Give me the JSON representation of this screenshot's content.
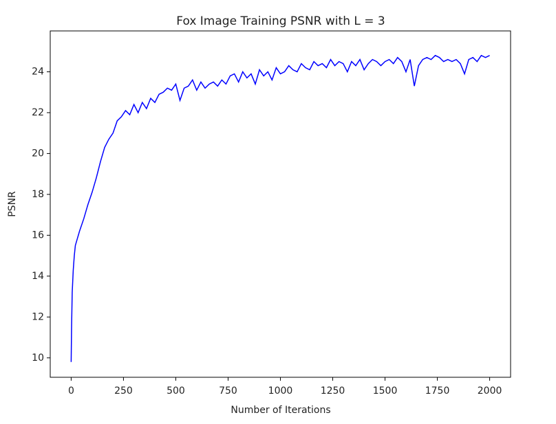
{
  "chart_data": {
    "type": "line",
    "title": "Fox Image Training PSNR with L = 3",
    "x_label": "Number of Iterations",
    "y_label": "PSNR",
    "x": [
      0,
      2,
      5,
      10,
      15,
      20,
      40,
      60,
      80,
      100,
      120,
      140,
      160,
      180,
      200,
      220,
      240,
      260,
      280,
      300,
      320,
      340,
      360,
      380,
      400,
      420,
      440,
      460,
      480,
      500,
      520,
      540,
      560,
      580,
      600,
      620,
      640,
      660,
      680,
      700,
      720,
      740,
      760,
      780,
      800,
      820,
      840,
      860,
      880,
      900,
      920,
      940,
      960,
      980,
      1000,
      1020,
      1040,
      1060,
      1080,
      1100,
      1120,
      1140,
      1160,
      1180,
      1200,
      1220,
      1240,
      1260,
      1280,
      1300,
      1320,
      1340,
      1360,
      1380,
      1400,
      1420,
      1440,
      1460,
      1480,
      1500,
      1520,
      1540,
      1560,
      1580,
      1600,
      1620,
      1640,
      1660,
      1680,
      1700,
      1720,
      1740,
      1760,
      1780,
      1800,
      1820,
      1840,
      1860,
      1880,
      1900,
      1920,
      1940,
      1960,
      1980,
      2000
    ],
    "series": [
      {
        "color": "#0000ff",
        "values": [
          9.8,
          11.5,
          13.2,
          14.3,
          15.0,
          15.5,
          16.2,
          16.8,
          17.5,
          18.1,
          18.8,
          19.6,
          20.3,
          20.7,
          21.0,
          21.6,
          21.8,
          22.1,
          21.9,
          22.4,
          22.0,
          22.5,
          22.2,
          22.7,
          22.5,
          22.9,
          23.0,
          23.2,
          23.1,
          23.4,
          22.6,
          23.2,
          23.3,
          23.6,
          23.1,
          23.5,
          23.2,
          23.4,
          23.5,
          23.3,
          23.6,
          23.4,
          23.8,
          23.9,
          23.5,
          24.0,
          23.7,
          23.9,
          23.4,
          24.1,
          23.8,
          24.0,
          23.6,
          24.2,
          23.9,
          24.0,
          24.3,
          24.1,
          24.0,
          24.4,
          24.2,
          24.1,
          24.5,
          24.3,
          24.4,
          24.2,
          24.6,
          24.3,
          24.5,
          24.4,
          24.0,
          24.5,
          24.3,
          24.6,
          24.1,
          24.4,
          24.6,
          24.5,
          24.3,
          24.5,
          24.6,
          24.4,
          24.7,
          24.5,
          24.0,
          24.6,
          23.3,
          24.3,
          24.6,
          24.7,
          24.6,
          24.8,
          24.7,
          24.5,
          24.6,
          24.5,
          24.6,
          24.4,
          23.9,
          24.6,
          24.7,
          24.5,
          24.8,
          24.7,
          24.8
        ]
      }
    ],
    "xlim": [
      -100,
      2100
    ],
    "ylim": [
      9.05,
      26.0
    ],
    "xticks": [
      0,
      250,
      500,
      750,
      1000,
      1250,
      1500,
      1750,
      2000
    ],
    "yticks": [
      10,
      12,
      14,
      16,
      18,
      20,
      22,
      24
    ]
  }
}
